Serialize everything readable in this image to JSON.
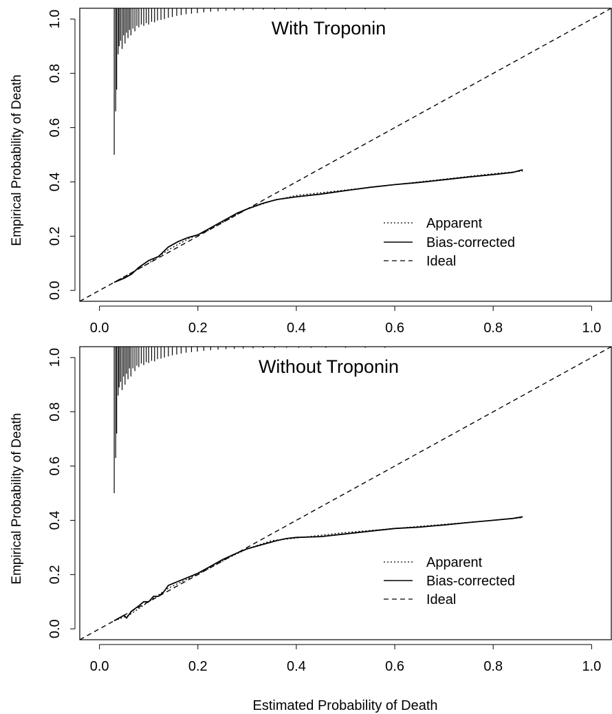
{
  "figure": {
    "xlabel": "Estimated Probability of Death"
  },
  "chart_data": [
    {
      "type": "line",
      "title": "With Troponin",
      "xlabel": "Estimated Probability of Death",
      "ylabel": "Empirical Probability of Death",
      "xlim": [
        -0.04,
        1.04
      ],
      "ylim": [
        -0.04,
        1.04
      ],
      "xticks": [
        "0.0",
        "0.2",
        "0.4",
        "0.6",
        "0.8",
        "1.0"
      ],
      "yticks": [
        "0.0",
        "0.2",
        "0.4",
        "0.6",
        "0.8",
        "1.0"
      ],
      "grid": false,
      "legend": {
        "placement": "bottom-right",
        "entries": [
          "Apparent",
          "Bias-corrected",
          "Ideal"
        ]
      },
      "series": [
        {
          "name": "Apparent",
          "style": "dotted",
          "x": [
            0.03,
            0.06,
            0.1,
            0.14,
            0.18,
            0.22,
            0.26,
            0.3,
            0.35,
            0.4,
            0.5,
            0.6,
            0.7,
            0.8,
            0.86
          ],
          "y": [
            0.03,
            0.06,
            0.1,
            0.15,
            0.19,
            0.22,
            0.26,
            0.3,
            0.33,
            0.35,
            0.37,
            0.39,
            0.41,
            0.43,
            0.44
          ]
        },
        {
          "name": "Bias-corrected",
          "style": "solid",
          "x": [
            0.03,
            0.05,
            0.065,
            0.08,
            0.1,
            0.12,
            0.14,
            0.16,
            0.18,
            0.2,
            0.22,
            0.25,
            0.28,
            0.3,
            0.33,
            0.36,
            0.4,
            0.45,
            0.5,
            0.55,
            0.6,
            0.65,
            0.7,
            0.75,
            0.8,
            0.84,
            0.86
          ],
          "y": [
            0.03,
            0.045,
            0.06,
            0.085,
            0.11,
            0.125,
            0.16,
            0.18,
            0.195,
            0.205,
            0.225,
            0.255,
            0.285,
            0.3,
            0.32,
            0.335,
            0.345,
            0.355,
            0.368,
            0.38,
            0.39,
            0.398,
            0.408,
            0.418,
            0.427,
            0.435,
            0.445
          ]
        },
        {
          "name": "Ideal",
          "style": "dashed",
          "x": [
            -0.04,
            1.04
          ],
          "y": [
            -0.04,
            1.04
          ]
        }
      ],
      "rug": {
        "ymax": 1.04,
        "spikes": [
          {
            "x": 0.03,
            "y": 0.5
          },
          {
            "x": 0.033,
            "y": 0.66
          },
          {
            "x": 0.035,
            "y": 0.74
          },
          {
            "x": 0.038,
            "y": 0.87
          },
          {
            "x": 0.04,
            "y": 0.9
          },
          {
            "x": 0.043,
            "y": 0.92
          },
          {
            "x": 0.046,
            "y": 0.89
          },
          {
            "x": 0.049,
            "y": 0.94
          },
          {
            "x": 0.052,
            "y": 0.91
          },
          {
            "x": 0.055,
            "y": 0.95
          },
          {
            "x": 0.058,
            "y": 0.93
          },
          {
            "x": 0.061,
            "y": 0.96
          },
          {
            "x": 0.064,
            "y": 0.94
          },
          {
            "x": 0.068,
            "y": 0.965
          },
          {
            "x": 0.072,
            "y": 0.955
          },
          {
            "x": 0.076,
            "y": 0.975
          },
          {
            "x": 0.08,
            "y": 0.97
          },
          {
            "x": 0.085,
            "y": 0.98
          },
          {
            "x": 0.09,
            "y": 0.975
          },
          {
            "x": 0.095,
            "y": 0.985
          },
          {
            "x": 0.1,
            "y": 0.98
          },
          {
            "x": 0.106,
            "y": 0.99
          },
          {
            "x": 0.112,
            "y": 0.988
          },
          {
            "x": 0.118,
            "y": 0.995
          },
          {
            "x": 0.125,
            "y": 0.997
          },
          {
            "x": 0.132,
            "y": 1.0
          },
          {
            "x": 0.14,
            "y": 1.005
          },
          {
            "x": 0.148,
            "y": 1.008
          },
          {
            "x": 0.157,
            "y": 1.012
          },
          {
            "x": 0.166,
            "y": 1.015
          },
          {
            "x": 0.176,
            "y": 1.018
          },
          {
            "x": 0.187,
            "y": 1.02
          },
          {
            "x": 0.199,
            "y": 1.022
          },
          {
            "x": 0.212,
            "y": 1.025
          },
          {
            "x": 0.226,
            "y": 1.027
          },
          {
            "x": 0.241,
            "y": 1.029
          },
          {
            "x": 0.257,
            "y": 1.031
          },
          {
            "x": 0.274,
            "y": 1.032
          },
          {
            "x": 0.292,
            "y": 1.033
          },
          {
            "x": 0.312,
            "y": 1.034
          },
          {
            "x": 0.333,
            "y": 1.035
          },
          {
            "x": 0.356,
            "y": 1.035
          },
          {
            "x": 0.38,
            "y": 1.036
          },
          {
            "x": 0.405,
            "y": 1.036
          },
          {
            "x": 0.43,
            "y": 1.036
          },
          {
            "x": 0.46,
            "y": 1.036
          },
          {
            "x": 0.5,
            "y": 1.036
          },
          {
            "x": 0.54,
            "y": 1.036
          },
          {
            "x": 0.58,
            "y": 1.036
          }
        ]
      }
    },
    {
      "type": "line",
      "title": "Without Troponin",
      "xlabel": "Estimated Probability of Death",
      "ylabel": "Empirical Probability of Death",
      "xlim": [
        -0.04,
        1.04
      ],
      "ylim": [
        -0.04,
        1.04
      ],
      "xticks": [
        "0.0",
        "0.2",
        "0.4",
        "0.6",
        "0.8",
        "1.0"
      ],
      "yticks": [
        "0.0",
        "0.2",
        "0.4",
        "0.6",
        "0.8",
        "1.0"
      ],
      "grid": false,
      "legend": {
        "placement": "bottom-right",
        "entries": [
          "Apparent",
          "Bias-corrected",
          "Ideal"
        ]
      },
      "series": [
        {
          "name": "Apparent",
          "style": "dotted",
          "x": [
            0.03,
            0.06,
            0.1,
            0.14,
            0.18,
            0.22,
            0.26,
            0.3,
            0.35,
            0.4,
            0.5,
            0.6,
            0.7,
            0.8,
            0.86
          ],
          "y": [
            0.03,
            0.05,
            0.1,
            0.15,
            0.185,
            0.22,
            0.26,
            0.295,
            0.325,
            0.335,
            0.355,
            0.37,
            0.385,
            0.4,
            0.41
          ]
        },
        {
          "name": "Bias-corrected",
          "style": "solid",
          "x": [
            0.03,
            0.05,
            0.055,
            0.065,
            0.08,
            0.09,
            0.1,
            0.11,
            0.12,
            0.13,
            0.14,
            0.16,
            0.18,
            0.2,
            0.22,
            0.25,
            0.28,
            0.3,
            0.33,
            0.36,
            0.38,
            0.4,
            0.45,
            0.5,
            0.55,
            0.6,
            0.65,
            0.7,
            0.75,
            0.8,
            0.84,
            0.86
          ],
          "y": [
            0.03,
            0.05,
            0.04,
            0.065,
            0.085,
            0.1,
            0.1,
            0.12,
            0.12,
            0.135,
            0.16,
            0.175,
            0.19,
            0.205,
            0.225,
            0.255,
            0.28,
            0.295,
            0.31,
            0.325,
            0.333,
            0.337,
            0.34,
            0.35,
            0.36,
            0.37,
            0.375,
            0.383,
            0.392,
            0.4,
            0.407,
            0.413
          ]
        },
        {
          "name": "Ideal",
          "style": "dashed",
          "x": [
            -0.04,
            1.04
          ],
          "y": [
            -0.04,
            1.04
          ]
        }
      ],
      "rug": {
        "ymax": 1.04,
        "spikes": [
          {
            "x": 0.03,
            "y": 0.5
          },
          {
            "x": 0.033,
            "y": 0.63
          },
          {
            "x": 0.035,
            "y": 0.72
          },
          {
            "x": 0.038,
            "y": 0.86
          },
          {
            "x": 0.04,
            "y": 0.89
          },
          {
            "x": 0.043,
            "y": 0.91
          },
          {
            "x": 0.046,
            "y": 0.88
          },
          {
            "x": 0.049,
            "y": 0.93
          },
          {
            "x": 0.052,
            "y": 0.9
          },
          {
            "x": 0.055,
            "y": 0.94
          },
          {
            "x": 0.058,
            "y": 0.92
          },
          {
            "x": 0.061,
            "y": 0.96
          },
          {
            "x": 0.064,
            "y": 0.93
          },
          {
            "x": 0.068,
            "y": 0.96
          },
          {
            "x": 0.072,
            "y": 0.95
          },
          {
            "x": 0.076,
            "y": 0.97
          },
          {
            "x": 0.08,
            "y": 0.965
          },
          {
            "x": 0.085,
            "y": 0.978
          },
          {
            "x": 0.09,
            "y": 0.972
          },
          {
            "x": 0.095,
            "y": 0.983
          },
          {
            "x": 0.1,
            "y": 0.98
          },
          {
            "x": 0.106,
            "y": 0.988
          },
          {
            "x": 0.112,
            "y": 0.986
          },
          {
            "x": 0.118,
            "y": 0.994
          },
          {
            "x": 0.125,
            "y": 0.996
          },
          {
            "x": 0.132,
            "y": 1.0
          },
          {
            "x": 0.14,
            "y": 1.004
          },
          {
            "x": 0.148,
            "y": 1.008
          },
          {
            "x": 0.157,
            "y": 1.011
          },
          {
            "x": 0.166,
            "y": 1.015
          },
          {
            "x": 0.176,
            "y": 1.018
          },
          {
            "x": 0.187,
            "y": 1.02
          },
          {
            "x": 0.199,
            "y": 1.022
          },
          {
            "x": 0.212,
            "y": 1.025
          },
          {
            "x": 0.226,
            "y": 1.027
          },
          {
            "x": 0.241,
            "y": 1.029
          },
          {
            "x": 0.257,
            "y": 1.031
          },
          {
            "x": 0.274,
            "y": 1.032
          },
          {
            "x": 0.292,
            "y": 1.033
          },
          {
            "x": 0.312,
            "y": 1.034
          },
          {
            "x": 0.333,
            "y": 1.035
          },
          {
            "x": 0.356,
            "y": 1.035
          },
          {
            "x": 0.38,
            "y": 1.036
          },
          {
            "x": 0.405,
            "y": 1.036
          },
          {
            "x": 0.43,
            "y": 1.036
          },
          {
            "x": 0.46,
            "y": 1.036
          },
          {
            "x": 0.5,
            "y": 1.036
          },
          {
            "x": 0.54,
            "y": 1.036
          },
          {
            "x": 0.58,
            "y": 1.036
          }
        ]
      }
    }
  ]
}
